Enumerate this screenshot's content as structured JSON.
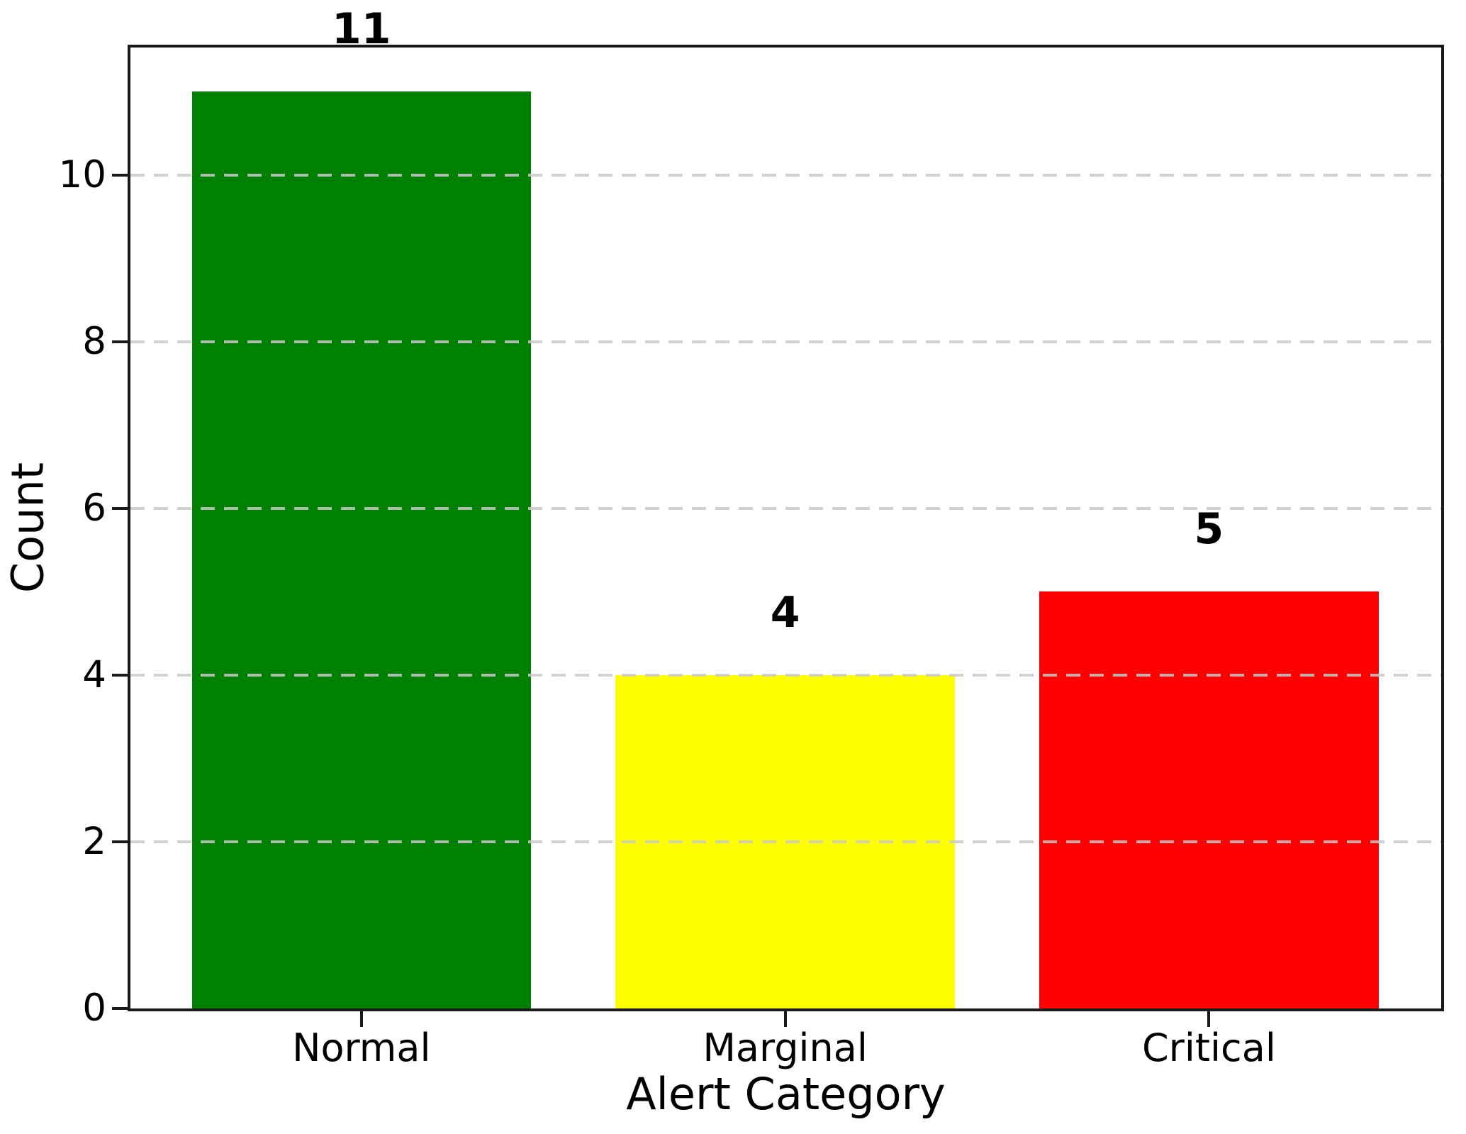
{
  "chart_data": {
    "type": "bar",
    "title": "",
    "categories": [
      "Normal",
      "Marginal",
      "Critical"
    ],
    "values": [
      11,
      4,
      5
    ],
    "value_labels": [
      "11",
      "4",
      "5"
    ],
    "bar_colors": [
      "#008000",
      "#ffff00",
      "#ff0000"
    ],
    "xlabel": "Alert Category",
    "ylabel": "Count",
    "yticks": [
      0,
      2,
      4,
      6,
      8,
      10
    ],
    "ylim": [
      0,
      11.53
    ],
    "xlim": [
      -0.545,
      2.548
    ],
    "bar_width": 0.8,
    "grid": "horizontal dashed gridlines, drawn over bars",
    "legend": "none",
    "colors": {
      "background": "#ffffff",
      "spine": "#1a1a1a",
      "gridline": "#c9c9c9",
      "text": "#000000"
    }
  }
}
